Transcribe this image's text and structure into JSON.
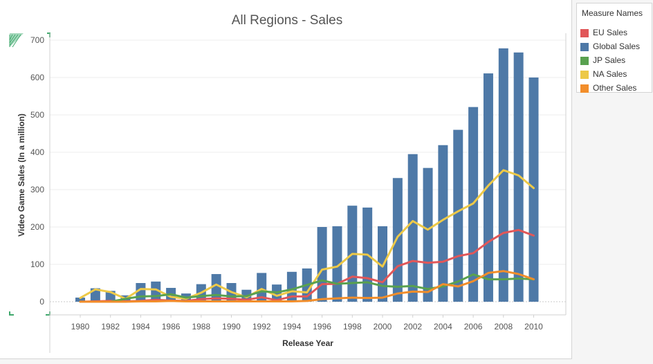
{
  "chart_data": {
    "type": "bar+line",
    "title": "All Regions - Sales",
    "xlabel": "Release Year",
    "ylabel": "Video Game Sales (In a million)",
    "ylim": [
      0,
      700
    ],
    "yticks": [
      0,
      100,
      200,
      300,
      400,
      500,
      600,
      700
    ],
    "xticks": [
      "1980",
      "1982",
      "1984",
      "1986",
      "1988",
      "1990",
      "1992",
      "1994",
      "1996",
      "1998",
      "2000",
      "2002",
      "2004",
      "2006",
      "2008",
      "2010"
    ],
    "x": [
      1980,
      1981,
      1982,
      1983,
      1984,
      1985,
      1986,
      1987,
      1988,
      1989,
      1990,
      1991,
      1992,
      1993,
      1994,
      1995,
      1996,
      1997,
      1998,
      1999,
      2000,
      2001,
      2002,
      2003,
      2004,
      2005,
      2006,
      2007,
      2008,
      2009,
      2010
    ],
    "grid": true,
    "legend_position": "right",
    "bars": {
      "name": "Global Sales",
      "color": "#4e79a7",
      "values": [
        11,
        36,
        29,
        17,
        50,
        54,
        37,
        22,
        47,
        74,
        50,
        32,
        77,
        46,
        80,
        89,
        200,
        202,
        257,
        252,
        202,
        331,
        395,
        358,
        419,
        460,
        521,
        611,
        678,
        667,
        600
      ]
    },
    "series": [
      {
        "name": "NA Sales",
        "color": "#edc948",
        "values": [
          10,
          33,
          26,
          8,
          34,
          33,
          13,
          8,
          24,
          46,
          26,
          12,
          34,
          16,
          28,
          25,
          86,
          94,
          128,
          126,
          94,
          174,
          216,
          193,
          219,
          242,
          263,
          311,
          352,
          338,
          304
        ]
      },
      {
        "name": "EU Sales",
        "color": "#e15759",
        "values": [
          0,
          1,
          2,
          1,
          2,
          5,
          3,
          2,
          7,
          9,
          8,
          5,
          12,
          4,
          14,
          14,
          47,
          48,
          67,
          63,
          52,
          95,
          109,
          104,
          107,
          122,
          130,
          160,
          184,
          192,
          177
        ]
      },
      {
        "name": "JP Sales",
        "color": "#59a14f",
        "values": [
          0,
          0,
          0,
          8,
          14,
          15,
          20,
          11,
          15,
          18,
          14,
          15,
          28,
          25,
          33,
          45,
          57,
          48,
          50,
          52,
          42,
          40,
          42,
          34,
          41,
          54,
          73,
          60,
          60,
          62,
          60
        ]
      },
      {
        "name": "Other Sales",
        "color": "#f28e2b",
        "values": [
          0,
          0,
          0,
          0,
          1,
          1,
          2,
          1,
          1,
          1,
          1,
          1,
          1,
          1,
          1,
          2,
          7,
          9,
          11,
          10,
          11,
          22,
          27,
          26,
          47,
          41,
          55,
          77,
          82,
          74,
          60
        ]
      }
    ]
  },
  "legend": {
    "title": "Measure Names",
    "items": [
      {
        "label": "EU Sales",
        "color": "#e15759"
      },
      {
        "label": "Global Sales",
        "color": "#4e79a7"
      },
      {
        "label": "JP Sales",
        "color": "#59a14f"
      },
      {
        "label": "NA Sales",
        "color": "#edc948"
      },
      {
        "label": "Other Sales",
        "color": "#f28e2b"
      }
    ]
  }
}
